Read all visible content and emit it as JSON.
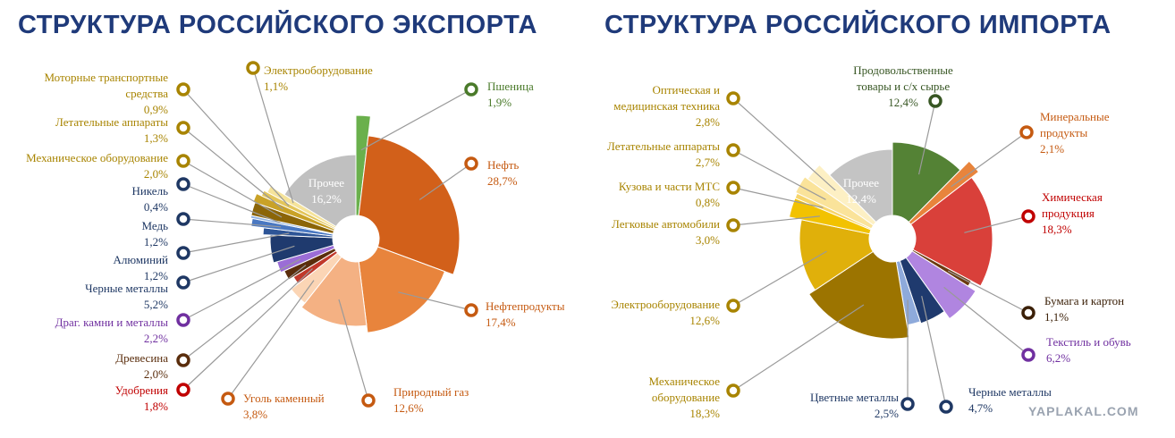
{
  "chart_data": [
    {
      "type": "pie",
      "title": "СТРУКТУРА РОССИЙСКОГО ЭКСПОРТА",
      "categories": [
        "Пшеница",
        "Нефть",
        "Нефтепродукты",
        "Природный газ",
        "Уголь каменный",
        "Удобрения",
        "Древесина",
        "Драг. камни и металлы",
        "Черные металлы",
        "Алюминий",
        "Медь",
        "Никель",
        "Механическое оборудование",
        "Летательные аппараты",
        "Моторные транспортные средства",
        "Электрооборудование",
        "Прочее"
      ],
      "values": [
        1.9,
        28.7,
        17.4,
        12.6,
        3.8,
        1.8,
        2.0,
        2.2,
        5.2,
        1.2,
        1.2,
        0.4,
        2.0,
        1.3,
        0.9,
        1.1,
        16.2
      ],
      "value_labels": [
        "1,9%",
        "28,7%",
        "17,4%",
        "12,6%",
        "3,8%",
        "1,8%",
        "2,0%",
        "2,2%",
        "5,2%",
        "1,2%",
        "1,2%",
        "0,4%",
        "2,0%",
        "1,3%",
        "0,9%",
        "1,1%",
        "16,2%"
      ],
      "colors": [
        "#6ab04c",
        "#d2601a",
        "#e8843c",
        "#f4b183",
        "#fbd5b5",
        "#c0392b",
        "#5a2d0c",
        "#9b6dd6",
        "#1f3a6e",
        "#2e5597",
        "#4a78c2",
        "#8eb0e0",
        "#8b6508",
        "#c9a227",
        "#e3c55a",
        "#f5e39a",
        "#c0c0c0"
      ]
    },
    {
      "type": "pie",
      "title": "СТРУКТУРА РОССИЙСКОГО ИМПОРТА",
      "categories": [
        "Продовольственные товары и с/х сырье",
        "Минеральные продукты",
        "Химическая продукция",
        "Бумага и картон",
        "Текстиль и обувь",
        "Черные металлы",
        "Цветные металлы",
        "Механическое оборудование",
        "Электрооборудование",
        "Легковые автомобили",
        "Кузова и части МТС",
        "Летательные аппараты",
        "Оптическая и медицинская техника",
        "Прочее"
      ],
      "values": [
        12.4,
        2.1,
        18.3,
        1.1,
        6.2,
        4.7,
        2.5,
        18.3,
        12.6,
        3.0,
        0.8,
        2.7,
        2.8,
        12.4
      ],
      "value_labels": [
        "12,4%",
        "2,1%",
        "18,3%",
        "1,1%",
        "6,2%",
        "4,7%",
        "2,5%",
        "18,3%",
        "12,6%",
        "3,0%",
        "0,8%",
        "2,7%",
        "2,8%",
        "12,4%"
      ],
      "colors": [
        "#548235",
        "#e8843c",
        "#d9403a",
        "#6b3a10",
        "#b085e0",
        "#1f3a6e",
        "#8eaadb",
        "#9c7400",
        "#e0b00a",
        "#f2c200",
        "#f7d56b",
        "#fae39a",
        "#fdf0c4",
        "#c4c4c4"
      ]
    }
  ],
  "watermark": "YAPLAKAL.COM"
}
